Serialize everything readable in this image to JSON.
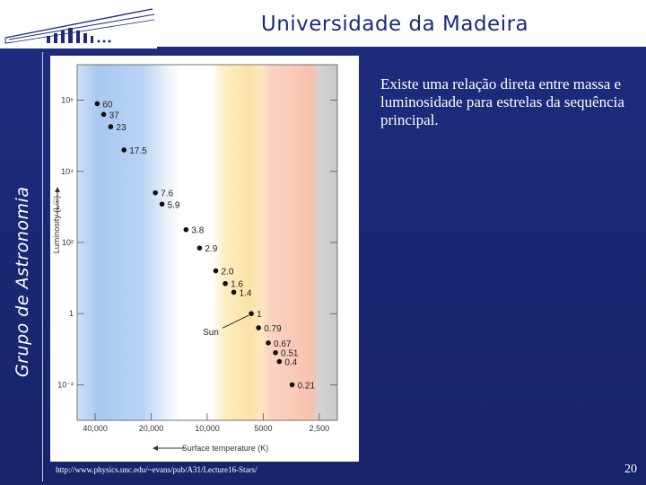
{
  "header": {
    "title": "Universidade da Madeira"
  },
  "sidebar": {
    "label": "Grupo de Astronomia"
  },
  "body": {
    "text": "Existe uma relação direta entre massa e luminosidade para estrelas da sequência principal."
  },
  "source": {
    "url": "http://www.physics.unc.edu/~evans/pub/A31/Lecture16-Stars/"
  },
  "footer": {
    "page_number": "20"
  },
  "chart_data": {
    "type": "scatter",
    "xlabel": "Surface temperature (K)",
    "ylabel": "Luminosity (L☉)",
    "x_scale": "log-reversed",
    "y_scale": "log",
    "x_ticks": [
      "40,000",
      "20,000",
      "10,000",
      "5000",
      "2,500"
    ],
    "y_ticks": [
      "10⁶",
      "10⁴",
      "10²",
      "1",
      "10⁻²"
    ],
    "annotation": "Sun",
    "points": [
      {
        "label": "60",
        "x": 39000,
        "y": 800000
      },
      {
        "label": "37",
        "x": 36000,
        "y": 400000
      },
      {
        "label": "23",
        "x": 33000,
        "y": 180000
      },
      {
        "label": "17.5",
        "x": 28000,
        "y": 40000
      },
      {
        "label": "7.6",
        "x": 19000,
        "y": 2500
      },
      {
        "label": "5.9",
        "x": 17500,
        "y": 1200
      },
      {
        "label": "3.8",
        "x": 13000,
        "y": 230
      },
      {
        "label": "2.9",
        "x": 11000,
        "y": 70
      },
      {
        "label": "2.0",
        "x": 9000,
        "y": 16
      },
      {
        "label": "1.6",
        "x": 8000,
        "y": 7
      },
      {
        "label": "1.4",
        "x": 7200,
        "y": 4
      },
      {
        "label": "1",
        "x": 5800,
        "y": 1
      },
      {
        "label": "0.79",
        "x": 5300,
        "y": 0.4
      },
      {
        "label": "0.67",
        "x": 4700,
        "y": 0.15
      },
      {
        "label": "0.51",
        "x": 4300,
        "y": 0.08
      },
      {
        "label": "0.4",
        "x": 4100,
        "y": 0.045
      },
      {
        "label": "0.21",
        "x": 3500,
        "y": 0.01
      }
    ]
  }
}
